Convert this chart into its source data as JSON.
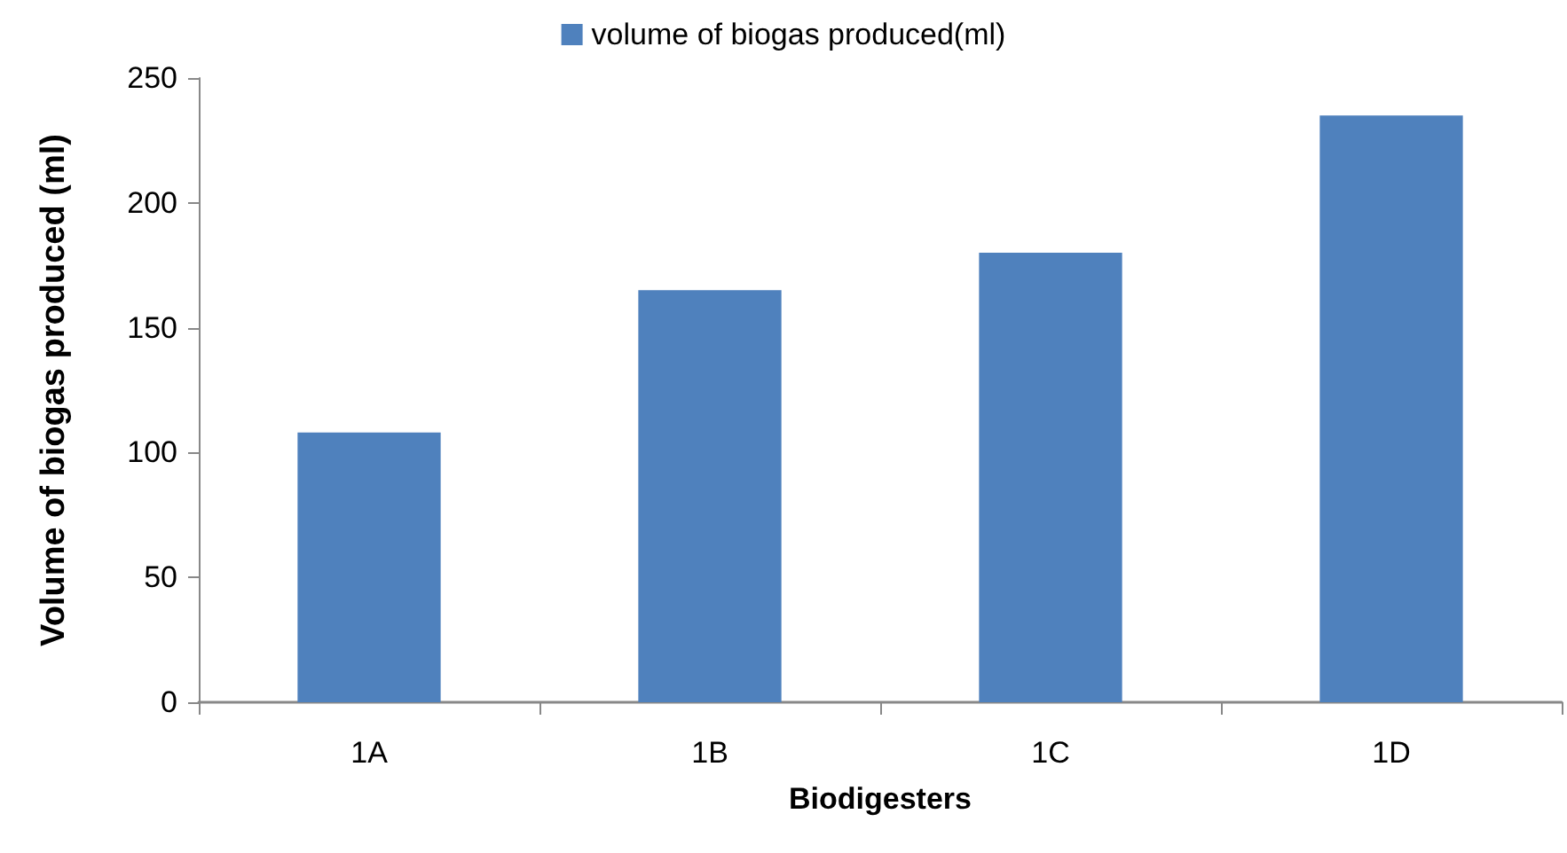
{
  "chart_data": {
    "type": "bar",
    "xlabel": "Biodigesters",
    "ylabel": "Volume of biogas produced (ml)",
    "categories": [
      "1A",
      "1B",
      "1C",
      "1D"
    ],
    "series": [
      {
        "name": "volume of biogas produced(ml)",
        "color": "#4f81bd",
        "values": [
          108,
          165,
          180,
          235
        ]
      }
    ],
    "ylim": [
      0,
      250
    ],
    "yticks": [
      0,
      50,
      100,
      150,
      200,
      250
    ],
    "grid": false,
    "legend": "top"
  }
}
